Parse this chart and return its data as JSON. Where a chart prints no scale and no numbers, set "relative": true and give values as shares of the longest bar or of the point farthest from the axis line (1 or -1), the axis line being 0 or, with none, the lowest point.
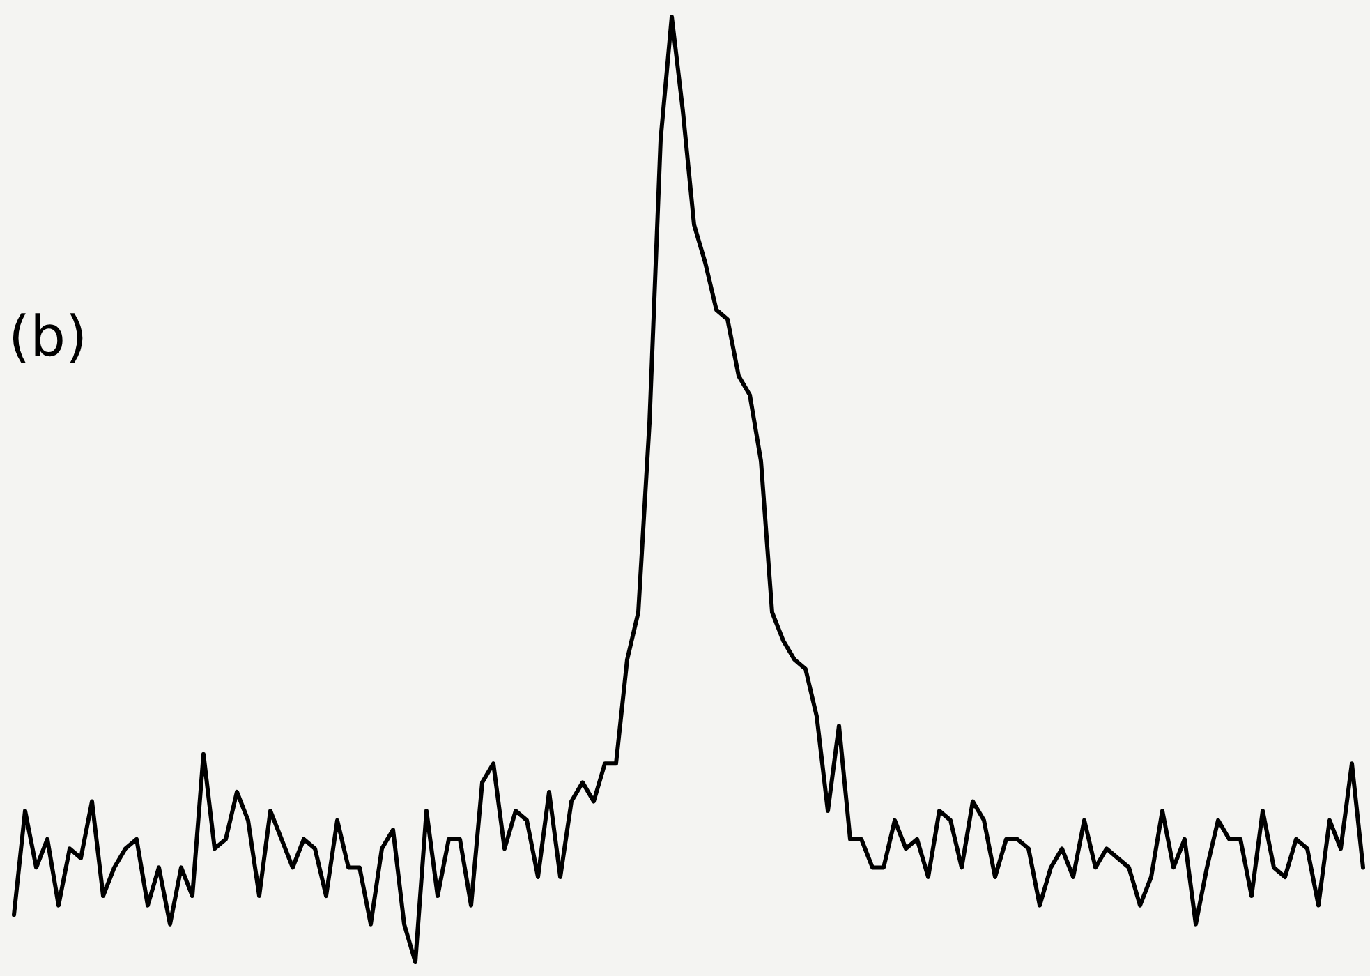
{
  "chart_data": {
    "type": "line",
    "relative": true,
    "annotations": [
      "(b)"
    ],
    "categories": [
      null,
      null,
      null,
      null,
      null,
      null,
      null,
      null,
      null,
      null,
      null,
      null,
      null,
      null,
      null,
      null,
      null,
      null,
      null,
      null,
      null,
      null,
      null,
      null,
      null,
      null,
      null,
      null,
      null,
      null,
      null,
      null,
      null,
      null,
      null,
      null,
      null,
      null,
      null,
      null,
      null,
      null,
      null,
      null,
      null,
      null,
      null,
      null,
      null,
      null,
      null,
      null,
      null,
      null,
      null,
      null,
      null,
      null,
      null,
      null,
      null,
      null,
      null,
      null,
      null,
      null,
      null,
      null,
      null,
      null,
      null,
      null,
      null,
      null,
      null,
      null,
      null,
      null,
      null,
      null,
      null,
      null,
      null,
      null,
      null,
      null,
      null,
      null,
      null,
      null,
      null,
      null,
      null,
      null,
      null,
      null,
      null,
      null,
      null,
      null,
      null,
      null,
      null,
      null,
      null,
      null,
      null,
      null,
      null,
      null,
      null,
      null,
      null,
      null,
      null,
      null,
      null,
      null,
      null,
      null,
      null,
      null
    ],
    "series": [
      {
        "color": "#000000",
        "values": [
          0.05,
          0.16,
          0.1,
          0.13,
          0.06,
          0.12,
          0.11,
          0.17,
          0.07,
          0.1,
          0.12,
          0.13,
          0.06,
          0.1,
          0.04,
          0.1,
          0.07,
          0.22,
          0.12,
          0.13,
          0.18,
          0.15,
          0.07,
          0.16,
          0.13,
          0.1,
          0.13,
          0.12,
          0.07,
          0.15,
          0.1,
          0.1,
          0.04,
          0.12,
          0.14,
          0.04,
          0.0,
          0.16,
          0.07,
          0.13,
          0.13,
          0.06,
          0.19,
          0.21,
          0.12,
          0.16,
          0.15,
          0.09,
          0.18,
          0.09,
          0.17,
          0.19,
          0.17,
          0.21,
          0.21,
          0.32,
          0.37,
          0.57,
          0.87,
          1,
          0.9,
          0.78,
          0.74,
          0.69,
          0.68,
          0.62,
          0.6,
          0.53,
          0.37,
          0.34,
          0.32,
          0.31,
          0.26,
          0.16,
          0.25,
          0.13,
          0.13,
          0.1,
          0.1,
          0.15,
          0.12,
          0.13,
          0.09,
          0.16,
          0.15,
          0.1,
          0.17,
          0.15,
          0.09,
          0.13,
          0.13,
          0.12,
          0.06,
          0.1,
          0.12,
          0.09,
          0.15,
          0.1,
          0.12,
          0.11,
          0.1,
          0.06,
          0.09,
          0.16,
          0.1,
          0.13,
          0.04,
          0.1,
          0.15,
          0.13,
          0.13,
          0.07,
          0.16,
          0.1,
          0.09,
          0.13,
          0.12,
          0.06,
          0.15,
          0.12,
          0.21,
          0.1
        ]
      }
    ]
  }
}
